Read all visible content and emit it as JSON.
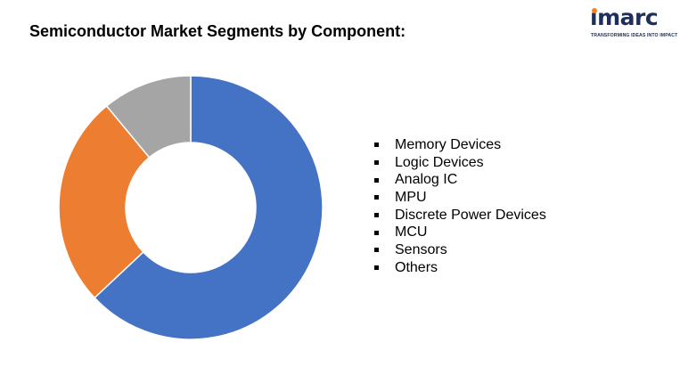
{
  "title": "Semiconductor Market Segments by Component:",
  "logo": {
    "wordmark": "imarc",
    "tagline": "TRANSFORMING IDEAS INTO IMPACT",
    "colors": {
      "primary": "#1f2f5c",
      "accent": "#f58220"
    }
  },
  "chart_data": {
    "type": "pie",
    "donut": true,
    "title": "Semiconductor Market Segments by Component:",
    "legend_position": "right",
    "categories": [
      "Memory Devices",
      "Logic Devices",
      "Analog IC",
      "MPU",
      "Discrete Power Devices",
      "MCU",
      "Sensors",
      "Others"
    ],
    "values": [
      63,
      26,
      11,
      0,
      0,
      0,
      0,
      0
    ],
    "unit": "%",
    "colors": [
      "#4472c4",
      "#ed7d31",
      "#a5a5a5",
      "#ffc000",
      "#5b9bd5",
      "#70ad47",
      "#264478",
      "#9e480e"
    ]
  }
}
